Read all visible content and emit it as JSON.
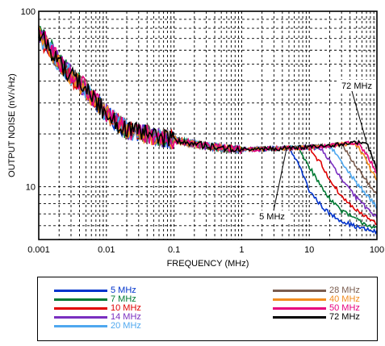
{
  "chart_data": {
    "type": "line",
    "title": "",
    "xlabel": "FREQUENCY (MHz)",
    "ylabel": "OUTPUT NOISE (nV/√Hz)",
    "xscale": "log",
    "yscale": "log",
    "xlim": [
      0.001,
      100
    ],
    "ylim": [
      5,
      100
    ],
    "x_ticks": [
      "0.001",
      "0.01",
      "0.1",
      "1",
      "10",
      "100"
    ],
    "y_ticks": [
      "100",
      "10"
    ],
    "grid": "dashed, on",
    "legend_position": "below",
    "annotations": [
      {
        "text": "72 MHz",
        "points_to_series": "72 MHz"
      },
      {
        "text": "5 MHz",
        "points_to_series": "5 MHz"
      }
    ],
    "series": [
      {
        "name": "5 MHz",
        "color": "#0033cc",
        "corner_mhz": 5,
        "x": [
          0.001,
          0.002,
          0.005,
          0.01,
          0.02,
          0.05,
          0.1,
          0.2,
          0.5,
          1,
          2,
          3,
          5,
          7,
          10,
          15,
          20,
          30,
          50,
          70,
          100
        ],
        "y": [
          75,
          50,
          35,
          26,
          21,
          19.5,
          18.5,
          17.5,
          16.6,
          16.3,
          16.4,
          16.5,
          16.4,
          13.5,
          9.5,
          7.8,
          7,
          6.4,
          5.9,
          5.7,
          5.5
        ]
      },
      {
        "name": "7 MHz",
        "color": "#007a33",
        "corner_mhz": 7,
        "x": [
          0.001,
          0.002,
          0.005,
          0.01,
          0.02,
          0.05,
          0.1,
          0.2,
          0.5,
          1,
          2,
          3,
          5,
          7,
          10,
          15,
          20,
          30,
          50,
          70,
          100
        ],
        "y": [
          78,
          52,
          36,
          26,
          21,
          19.5,
          18.5,
          17.5,
          16.6,
          16.3,
          16.4,
          16.5,
          16.6,
          16.5,
          13,
          10,
          8.6,
          7.3,
          6.5,
          6.1,
          5.8
        ]
      },
      {
        "name": "10 MHz",
        "color": "#e00000",
        "corner_mhz": 10,
        "x": [
          0.001,
          0.002,
          0.005,
          0.01,
          0.02,
          0.05,
          0.1,
          0.2,
          0.5,
          1,
          2,
          3,
          5,
          7,
          10,
          15,
          20,
          30,
          50,
          70,
          100
        ],
        "y": [
          72,
          49,
          35,
          26,
          21,
          19.5,
          18.5,
          17.5,
          16.6,
          16.3,
          16.4,
          16.5,
          16.6,
          16.7,
          16.6,
          13.5,
          11,
          8.8,
          7.3,
          6.7,
          6.1
        ]
      },
      {
        "name": "14 MHz",
        "color": "#7a2fc0",
        "corner_mhz": 14,
        "x": [
          0.001,
          0.002,
          0.005,
          0.01,
          0.02,
          0.05,
          0.1,
          0.2,
          0.5,
          1,
          2,
          3,
          5,
          7,
          10,
          15,
          20,
          30,
          50,
          70,
          100
        ],
        "y": [
          76,
          51,
          36,
          26,
          21,
          19.5,
          18.5,
          17.5,
          16.6,
          16.3,
          16.4,
          16.5,
          16.6,
          16.7,
          16.8,
          16.5,
          14,
          11,
          8.6,
          7.6,
          6.7
        ]
      },
      {
        "name": "20 MHz",
        "color": "#4fa8ef",
        "corner_mhz": 20,
        "x": [
          0.001,
          0.002,
          0.005,
          0.01,
          0.02,
          0.05,
          0.1,
          0.2,
          0.5,
          1,
          2,
          3,
          5,
          7,
          10,
          15,
          20,
          30,
          50,
          70,
          100
        ],
        "y": [
          74,
          50,
          35,
          26,
          21,
          19.5,
          18.5,
          17.5,
          16.6,
          16.3,
          16.4,
          16.5,
          16.6,
          16.7,
          16.8,
          17,
          17,
          14,
          10.5,
          9,
          7.6
        ]
      },
      {
        "name": "28 MHz",
        "color": "#7a5c4e",
        "corner_mhz": 28,
        "x": [
          0.001,
          0.002,
          0.005,
          0.01,
          0.02,
          0.05,
          0.1,
          0.2,
          0.5,
          1,
          2,
          3,
          5,
          7,
          10,
          15,
          20,
          30,
          50,
          70,
          100
        ],
        "y": [
          77,
          51,
          36,
          26,
          21,
          19.5,
          18.5,
          17.5,
          16.6,
          16.3,
          16.4,
          16.5,
          16.6,
          16.7,
          16.8,
          17,
          17.2,
          17.5,
          13,
          10.8,
          8.9
        ]
      },
      {
        "name": "40 MHz",
        "color": "#f28c1e",
        "corner_mhz": 40,
        "x": [
          0.001,
          0.002,
          0.005,
          0.01,
          0.02,
          0.05,
          0.1,
          0.2,
          0.5,
          1,
          2,
          3,
          5,
          7,
          10,
          15,
          20,
          30,
          50,
          70,
          100
        ],
        "y": [
          73,
          50,
          35,
          26,
          21,
          19.5,
          18.5,
          17.5,
          16.6,
          16.3,
          16.4,
          16.5,
          16.6,
          16.7,
          16.8,
          17,
          17.2,
          17.5,
          17.5,
          14,
          10.8
        ]
      },
      {
        "name": "50 MHz",
        "color": "#e6007e",
        "corner_mhz": 50,
        "x": [
          0.001,
          0.002,
          0.005,
          0.01,
          0.02,
          0.05,
          0.1,
          0.2,
          0.5,
          1,
          2,
          3,
          5,
          7,
          10,
          15,
          20,
          30,
          50,
          70,
          100
        ],
        "y": [
          79,
          52,
          36,
          26,
          21,
          19.5,
          18.5,
          17.5,
          16.6,
          16.3,
          16.4,
          16.5,
          16.6,
          16.7,
          16.8,
          17,
          17.2,
          17.5,
          17.8,
          15.5,
          12
        ]
      },
      {
        "name": "72 MHz",
        "color": "#000000",
        "corner_mhz": 72,
        "x": [
          0.001,
          0.002,
          0.005,
          0.01,
          0.02,
          0.05,
          0.1,
          0.2,
          0.5,
          1,
          2,
          3,
          5,
          7,
          10,
          15,
          20,
          30,
          50,
          70,
          100
        ],
        "y": [
          76,
          51,
          36,
          26,
          21,
          19.5,
          18.5,
          17.5,
          16.6,
          16.3,
          16.4,
          16.5,
          16.6,
          16.7,
          16.8,
          17,
          17.2,
          17.5,
          17.8,
          18,
          12.5
        ]
      }
    ]
  }
}
